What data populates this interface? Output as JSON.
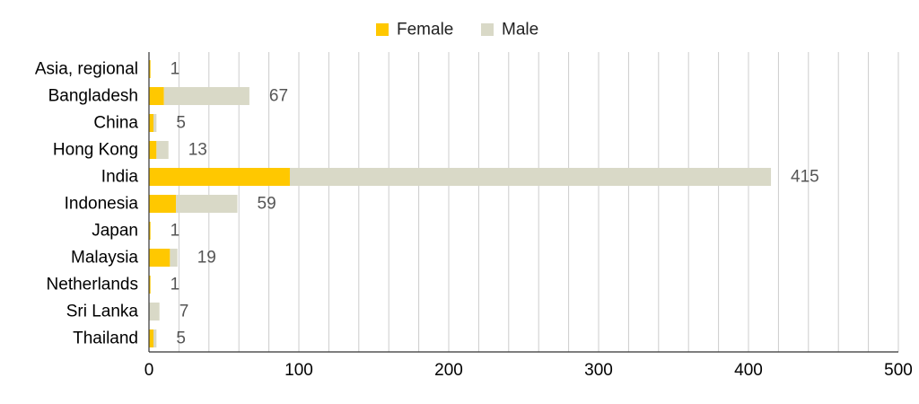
{
  "chart_data": {
    "type": "bar",
    "orientation": "horizontal",
    "stacked": true,
    "title": "",
    "xlabel": "",
    "ylabel": "",
    "xlim": [
      0,
      500
    ],
    "x_ticks": [
      0,
      100,
      200,
      300,
      400,
      500
    ],
    "grid": true,
    "legend_position": "top",
    "categories": [
      "Asia, regional",
      "Bangladesh",
      "China",
      "Hong Kong",
      "India",
      "Indonesia",
      "Japan",
      "Malaysia",
      "Netherlands",
      "Sri Lanka",
      "Thailand"
    ],
    "series": [
      {
        "name": "Female",
        "color": "#FFC800",
        "values": [
          1,
          10,
          3,
          5,
          94,
          18,
          1,
          14,
          1,
          0,
          3
        ]
      },
      {
        "name": "Male",
        "color": "#D9D9C7",
        "values": [
          0,
          57,
          2,
          8,
          321,
          41,
          0,
          5,
          0,
          7,
          2
        ]
      }
    ],
    "totals": [
      1,
      67,
      5,
      13,
      415,
      59,
      1,
      19,
      1,
      7,
      5
    ]
  }
}
